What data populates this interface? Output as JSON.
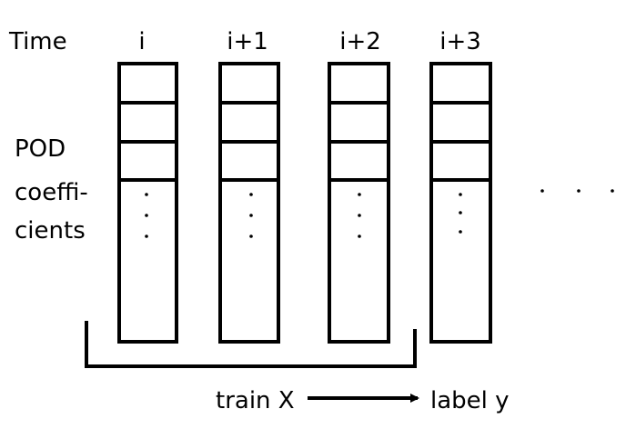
{
  "diagram": {
    "time_label": "Time",
    "pod_label_lines": [
      "POD",
      "coeffi-",
      "cients"
    ],
    "columns": [
      {
        "time": "i"
      },
      {
        "time": "i+1"
      },
      {
        "time": "i+2"
      },
      {
        "time": "i+3"
      }
    ],
    "train_label": "train X",
    "label_label": "label y",
    "ellipsis": "· · ·"
  },
  "colors": {
    "stroke": "#000000",
    "background": "#ffffff"
  }
}
